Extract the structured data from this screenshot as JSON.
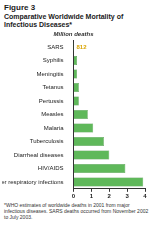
{
  "chart_data": {
    "type": "bar",
    "orientation": "horizontal",
    "figure_label": "Figure 3",
    "title": "Comparative Worldwide Mortality of Infectious Diseases*",
    "x_label": "Million deaths",
    "categories": [
      "SARS",
      "Syphilis",
      "Meningitis",
      "Tetanus",
      "Pertussis",
      "Measles",
      "Malaria",
      "Tuberculosis",
      "Diarrheal diseases",
      "HIV/AIDS",
      "Other respiratory infections"
    ],
    "values": [
      0.000812,
      0.2,
      0.2,
      0.3,
      0.3,
      0.8,
      1.1,
      1.7,
      2.0,
      2.9,
      3.9
    ],
    "value_labels": [
      "812",
      null,
      null,
      null,
      null,
      null,
      null,
      null,
      null,
      null,
      null
    ],
    "data_labels": true,
    "color": "#5fb85a",
    "xlim": [
      0,
      4
    ],
    "xticks": [
      0,
      1,
      2,
      3,
      4
    ],
    "grid": false,
    "note": "*WHO estimates of worldwide deaths in 2001 from major infectious diseases. SARS deaths occurred from November 2002 to July 2003."
  }
}
